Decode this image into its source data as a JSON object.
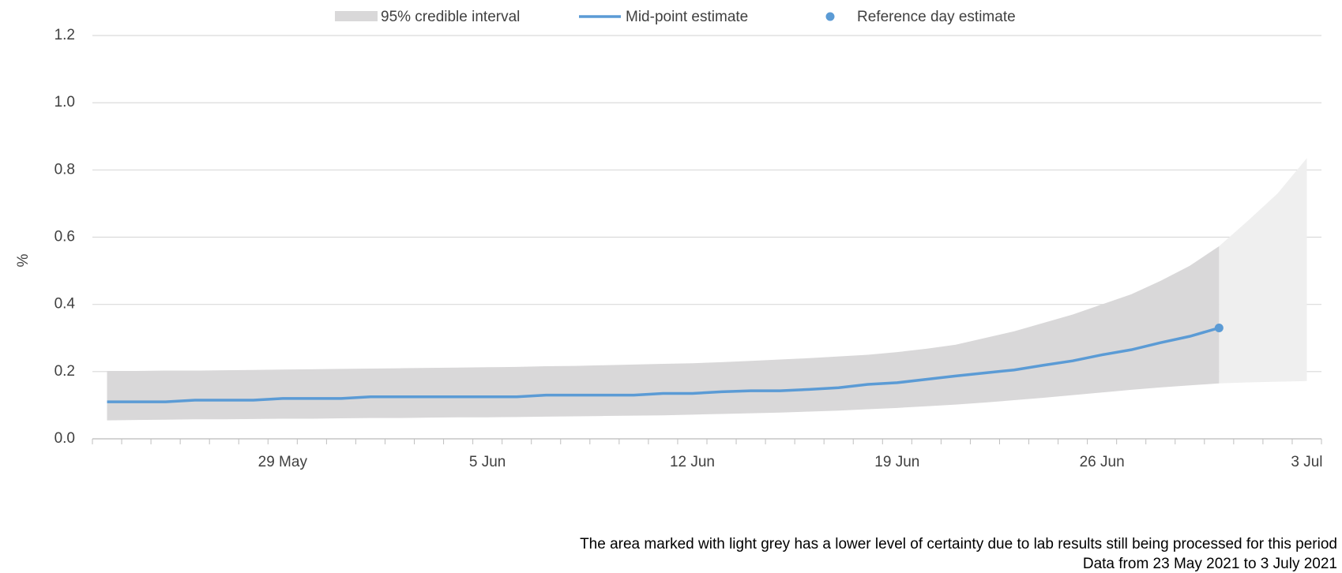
{
  "chart_data": {
    "type": "line",
    "ylabel": "%",
    "categories": [
      null,
      null,
      null,
      null,
      null,
      null,
      "29 May",
      null,
      null,
      null,
      null,
      null,
      null,
      "5 Jun",
      null,
      null,
      null,
      null,
      null,
      null,
      "12 Jun",
      null,
      null,
      null,
      null,
      null,
      null,
      "19 Jun",
      null,
      null,
      null,
      null,
      null,
      null,
      "26 Jun",
      null,
      null,
      null,
      null,
      null,
      null,
      "3 Jul"
    ],
    "ylim": [
      0,
      1.2
    ],
    "yticks": [
      {
        "value": 0,
        "label": "0.0"
      },
      {
        "value": 0.2,
        "label": "0.2"
      },
      {
        "value": 0.4,
        "label": "0.4"
      },
      {
        "value": 0.6,
        "label": "0.6"
      },
      {
        "value": 0.8,
        "label": "0.8"
      },
      {
        "value": 1,
        "label": "1.0"
      },
      {
        "value": 1.2,
        "label": "1.2"
      }
    ],
    "grid": true,
    "interval": {
      "name": "95% credible interval",
      "color": "#d9d8d9",
      "upper": [
        0.202,
        0.202,
        0.203,
        0.203,
        0.204,
        0.205,
        0.206,
        0.207,
        0.208,
        0.209,
        0.21,
        0.211,
        0.212,
        0.213,
        0.214,
        0.216,
        0.217,
        0.219,
        0.221,
        0.223,
        0.225,
        0.228,
        0.232,
        0.236,
        0.24,
        0.245,
        0.25,
        0.258,
        0.268,
        0.28,
        0.3,
        0.32,
        0.345,
        0.37,
        0.4,
        0.43,
        0.47,
        0.515,
        0.573,
        null,
        null,
        null
      ],
      "lower": [
        0.055,
        0.056,
        0.057,
        0.058,
        0.058,
        0.059,
        0.06,
        0.06,
        0.061,
        0.062,
        0.062,
        0.063,
        0.064,
        0.064,
        0.065,
        0.066,
        0.067,
        0.068,
        0.069,
        0.07,
        0.072,
        0.074,
        0.076,
        0.078,
        0.081,
        0.084,
        0.088,
        0.092,
        0.097,
        0.102,
        0.108,
        0.115,
        0.122,
        0.13,
        0.138,
        0.146,
        0.153,
        0.159,
        0.165,
        null,
        null,
        null
      ]
    },
    "uncertain_interval": {
      "color": "#efefef",
      "upper": [
        null,
        null,
        null,
        null,
        null,
        null,
        null,
        null,
        null,
        null,
        null,
        null,
        null,
        null,
        null,
        null,
        null,
        null,
        null,
        null,
        null,
        null,
        null,
        null,
        null,
        null,
        null,
        null,
        null,
        null,
        null,
        null,
        null,
        null,
        null,
        null,
        null,
        null,
        0.573,
        0.65,
        0.73,
        0.835
      ],
      "lower": [
        null,
        null,
        null,
        null,
        null,
        null,
        null,
        null,
        null,
        null,
        null,
        null,
        null,
        null,
        null,
        null,
        null,
        null,
        null,
        null,
        null,
        null,
        null,
        null,
        null,
        null,
        null,
        null,
        null,
        null,
        null,
        null,
        null,
        null,
        null,
        null,
        null,
        null,
        0.165,
        0.168,
        0.17,
        0.172
      ]
    },
    "series": [
      {
        "name": "Mid-point estimate",
        "color": "#5b9bd5",
        "style": "line",
        "values": [
          0.11,
          0.11,
          0.11,
          0.115,
          0.115,
          0.115,
          0.12,
          0.12,
          0.12,
          0.125,
          0.125,
          0.125,
          0.125,
          0.125,
          0.125,
          0.13,
          0.13,
          0.13,
          0.13,
          0.135,
          0.135,
          0.14,
          0.143,
          0.143,
          0.147,
          0.152,
          0.162,
          0.167,
          0.177,
          0.187,
          0.196,
          0.205,
          0.219,
          0.232,
          0.25,
          0.265,
          0.286,
          0.305,
          0.33,
          null,
          null,
          null
        ]
      },
      {
        "name": "Reference day estimate",
        "color": "#5b9bd5",
        "style": "point",
        "values": [
          null,
          null,
          null,
          null,
          null,
          null,
          null,
          null,
          null,
          null,
          null,
          null,
          null,
          null,
          null,
          null,
          null,
          null,
          null,
          null,
          null,
          null,
          null,
          null,
          null,
          null,
          null,
          null,
          null,
          null,
          null,
          null,
          null,
          null,
          null,
          null,
          null,
          null,
          0.33,
          null,
          null,
          null
        ]
      }
    ],
    "notes": [
      "The area marked with light grey has a lower level of certainty due to lab results still being processed for this period",
      "Data from 23 May 2021 to 3 July 2021"
    ]
  }
}
